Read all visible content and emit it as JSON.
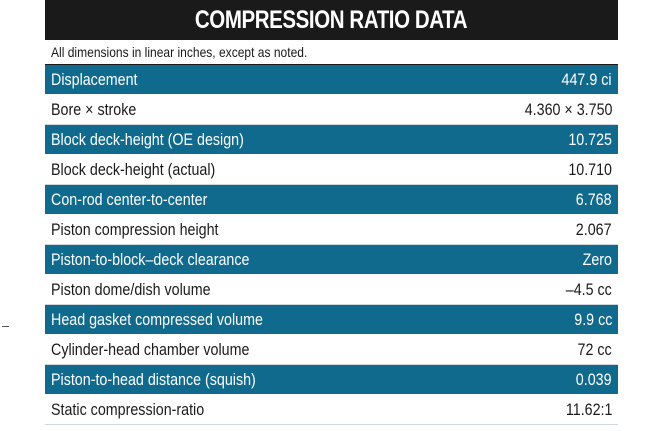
{
  "title": "COMPRESSION RATIO DATA",
  "note": "All dimensions in linear inches, except as noted.",
  "colors": {
    "header_bg": "#1a1a1a",
    "highlight_row_bg": "#0f6a8e",
    "plain_row_bg": "#ffffff"
  },
  "rows": [
    {
      "label": "Displacement",
      "value": "447.9 ci",
      "style": "dark"
    },
    {
      "label": "Bore × stroke",
      "value": "4.360 × 3.750",
      "style": "light"
    },
    {
      "label": "Block deck-height (OE design)",
      "value": "10.725",
      "style": "dark"
    },
    {
      "label": "Block deck-height (actual)",
      "value": "10.710",
      "style": "light"
    },
    {
      "label": "Con-rod center-to-center",
      "value": "6.768",
      "style": "dark"
    },
    {
      "label": "Piston compression height",
      "value": "2.067",
      "style": "light"
    },
    {
      "label": "Piston-to-block–deck clearance",
      "value": "Zero",
      "style": "dark"
    },
    {
      "label": "Piston dome/dish volume",
      "value": "–4.5 cc",
      "style": "light"
    },
    {
      "label": "Head gasket compressed volume",
      "value": "9.9 cc",
      "style": "dark"
    },
    {
      "label": "Cylinder-head chamber volume",
      "value": "72 cc",
      "style": "light"
    },
    {
      "label": "Piston-to-head distance (squish)",
      "value": "0.039",
      "style": "dark"
    },
    {
      "label": "Static compression-ratio",
      "value": "11.62:1",
      "style": "light"
    }
  ]
}
